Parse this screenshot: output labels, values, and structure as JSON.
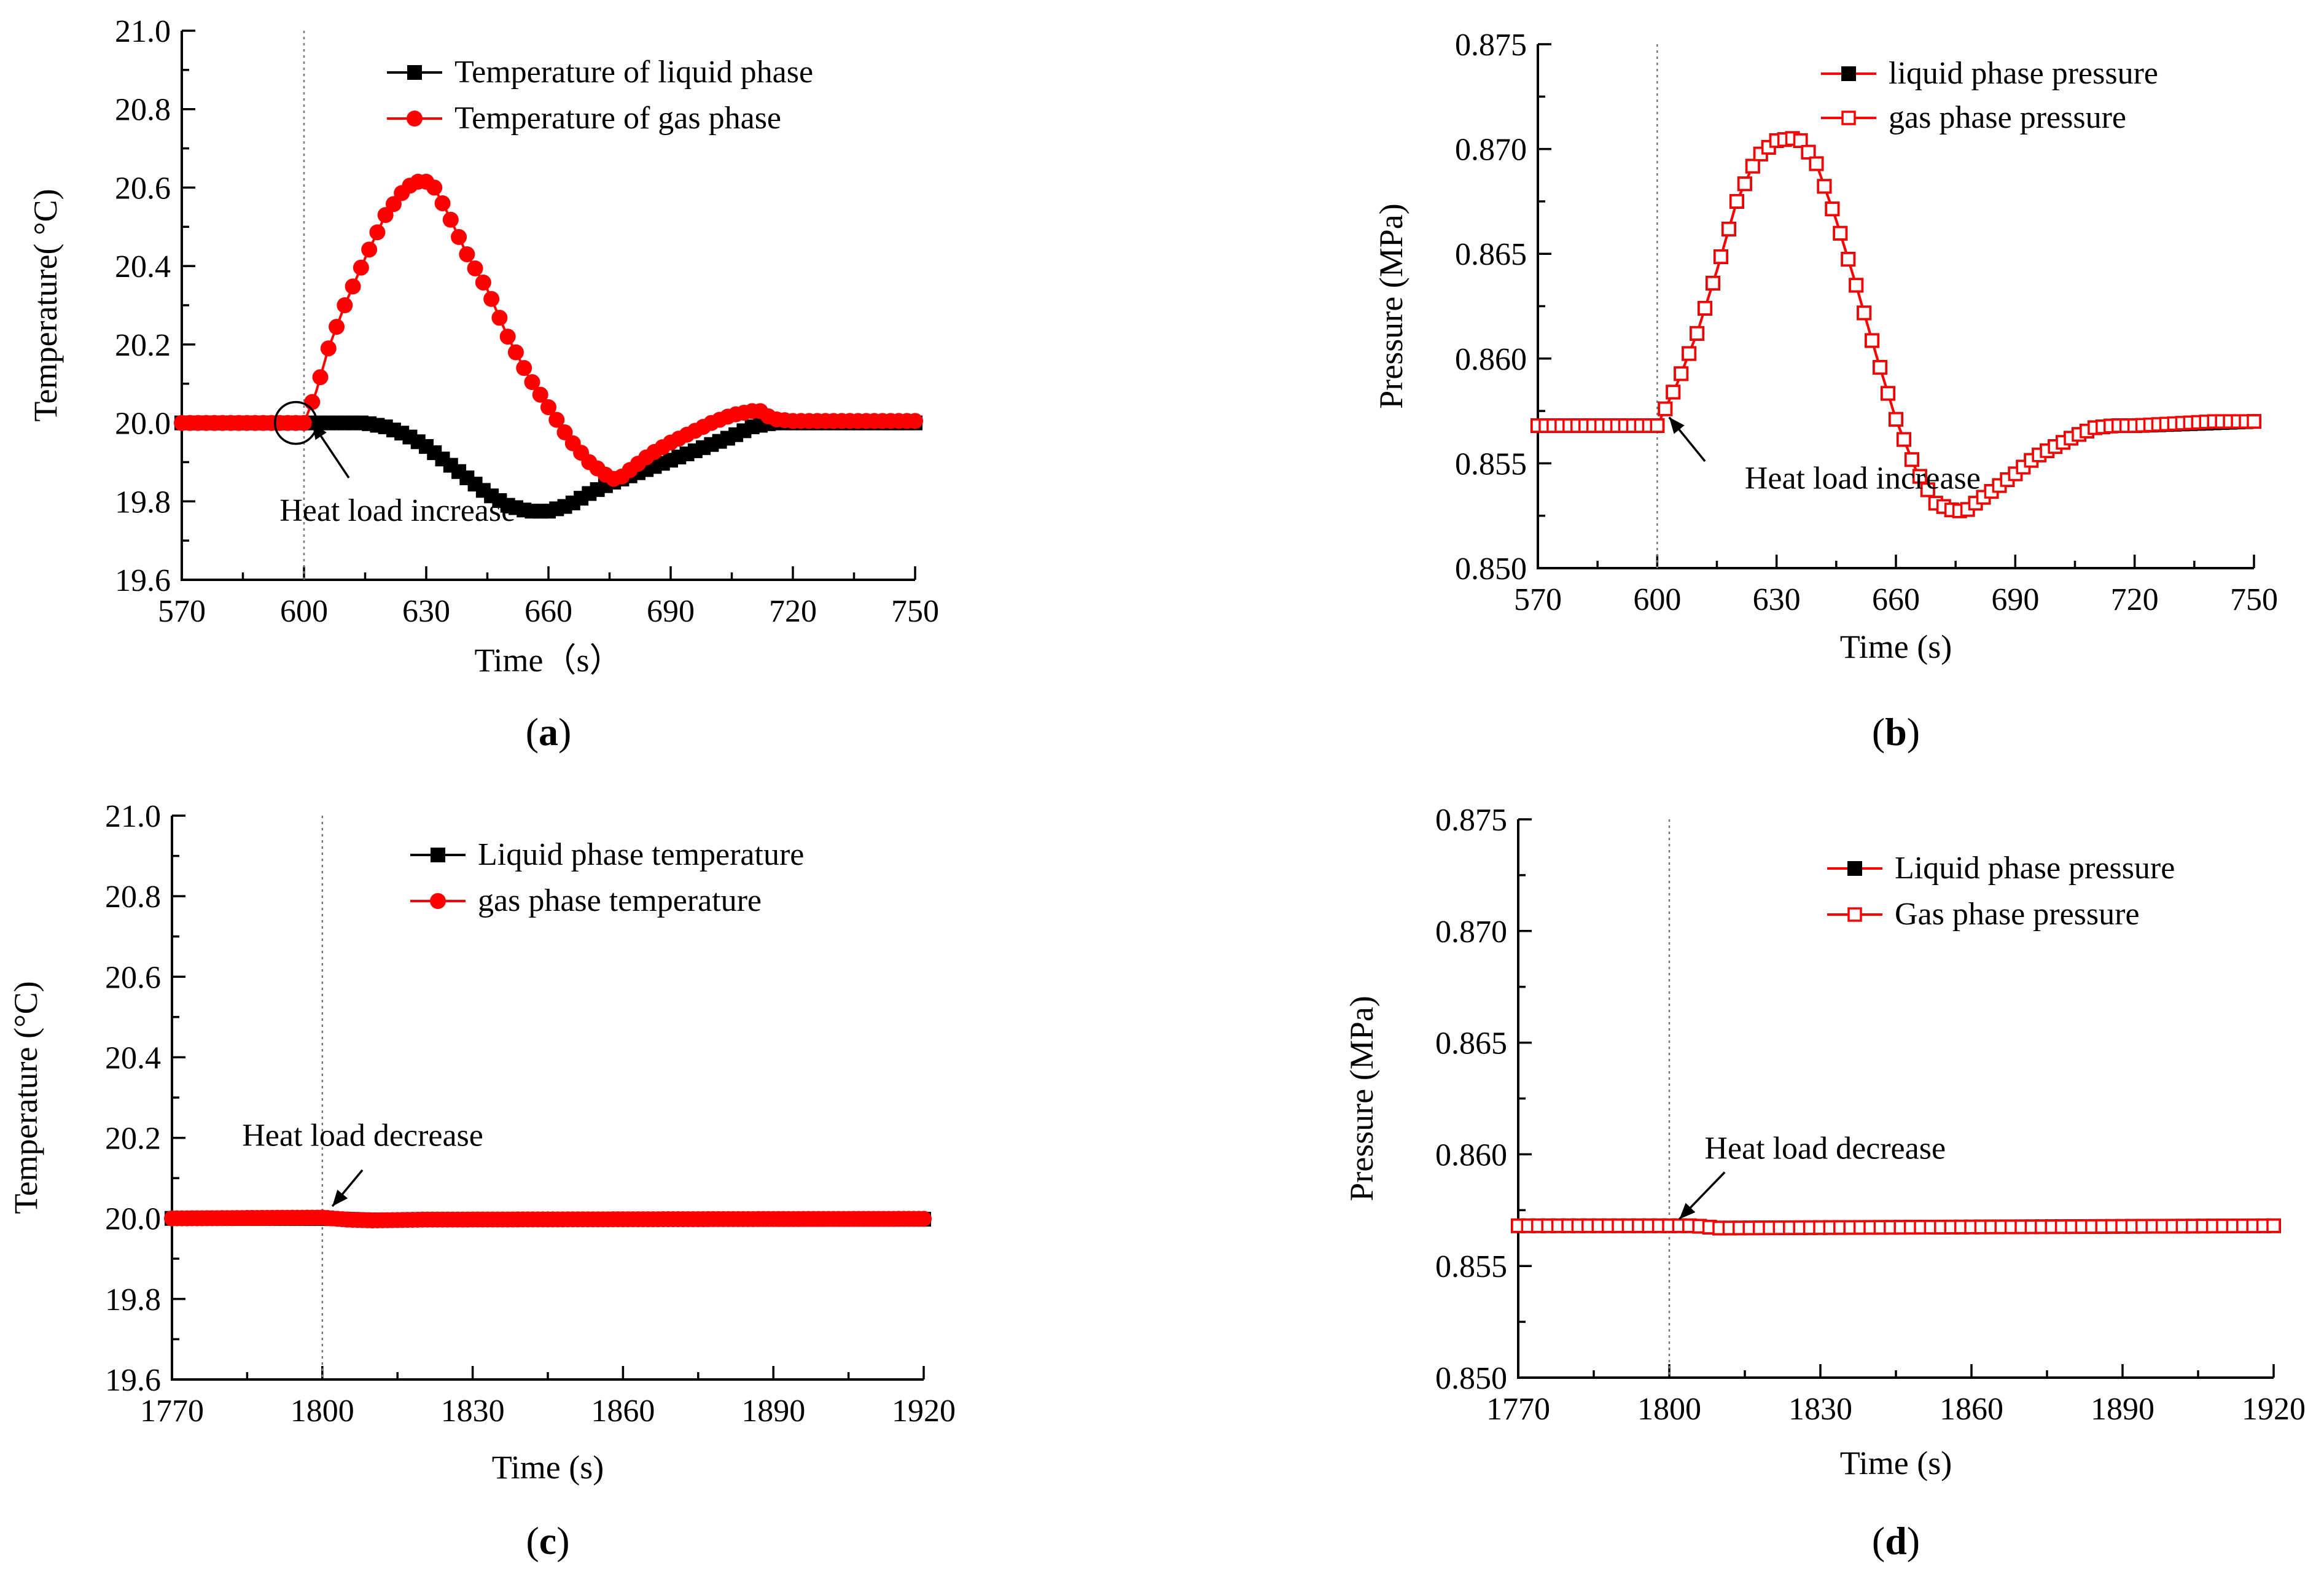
{
  "colors": {
    "liquid": "#000000",
    "gas": "#ff0000",
    "axis": "#000000",
    "marker_line": "#777777"
  },
  "chart_data": [
    {
      "id": "a",
      "type": "line",
      "panel_label": "a",
      "xlabel": "Time（s）",
      "ylabel": "Temperature(  °C)",
      "xlim": [
        570,
        750
      ],
      "ylim": [
        19.6,
        21.0
      ],
      "xticks": [
        570,
        600,
        630,
        660,
        690,
        720,
        750
      ],
      "yticks": [
        19.6,
        19.8,
        20.0,
        20.2,
        20.4,
        20.6,
        20.8,
        21.0
      ],
      "tick_decimals": 1,
      "vline_x": 600,
      "annotation": {
        "text": "Heat load increase",
        "arrow_to": [
          602,
          20.0
        ],
        "arrow_from": [
          611,
          19.86
        ],
        "text_at": [
          594,
          19.75
        ],
        "circle": [
          598,
          20.0
        ]
      },
      "legend": [
        "Temperature of liquid phase",
        "Temperature of gas phase"
      ],
      "series": [
        {
          "name": "Temperature of liquid phase",
          "color": "#000000",
          "marker": "square-filled",
          "step": 2,
          "x": [
            570,
            600,
            605,
            610,
            615,
            620,
            625,
            630,
            635,
            640,
            645,
            650,
            655,
            660,
            665,
            670,
            675,
            680,
            685,
            690,
            695,
            700,
            705,
            710,
            715,
            720,
            750
          ],
          "y": [
            20.0,
            20.0,
            20.0,
            20.0,
            20.0,
            19.99,
            19.97,
            19.94,
            19.9,
            19.86,
            19.82,
            19.79,
            19.775,
            19.775,
            19.79,
            19.82,
            19.845,
            19.865,
            19.885,
            19.905,
            19.925,
            19.945,
            19.965,
            19.99,
            20.0,
            20.0,
            20.0
          ]
        },
        {
          "name": "Temperature of gas phase",
          "color": "#ff0000",
          "marker": "circle-filled",
          "step": 2,
          "x": [
            570,
            600,
            603,
            606,
            610,
            615,
            620,
            625,
            628,
            630,
            632,
            635,
            640,
            645,
            650,
            655,
            660,
            665,
            670,
            675,
            677,
            680,
            685,
            690,
            695,
            700,
            705,
            710,
            712,
            715,
            720,
            750
          ],
          "y": [
            20.0,
            20.0,
            20.08,
            20.19,
            20.3,
            20.42,
            20.53,
            20.6,
            20.615,
            20.615,
            20.6,
            20.54,
            20.43,
            20.34,
            20.22,
            20.12,
            20.04,
            19.96,
            19.9,
            19.86,
            19.855,
            19.88,
            19.92,
            19.95,
            19.975,
            20.0,
            20.02,
            20.03,
            20.03,
            20.01,
            20.005,
            20.005
          ]
        }
      ]
    },
    {
      "id": "b",
      "type": "line",
      "panel_label": "b",
      "xlabel": "Time (s)",
      "ylabel": "Pressure (MPa)",
      "xlim": [
        570,
        750
      ],
      "ylim": [
        0.85,
        0.875
      ],
      "xticks": [
        570,
        600,
        630,
        660,
        690,
        720,
        750
      ],
      "yticks": [
        0.85,
        0.855,
        0.86,
        0.865,
        0.87,
        0.875
      ],
      "tick_decimals": 3,
      "vline_x": 600,
      "annotation": {
        "text": "Heat load increase",
        "arrow_to": [
          603,
          0.8572
        ],
        "arrow_from": [
          612,
          0.8551
        ],
        "text_at": [
          622,
          0.8538
        ]
      },
      "legend": [
        "liquid phase pressure",
        "gas phase pressure"
      ],
      "series": [
        {
          "name": "liquid phase pressure",
          "color": "#000000",
          "marker": "square-filled",
          "step": 2,
          "line_color": "#ff0000",
          "x": [
            570,
            600,
            605,
            610,
            615,
            620,
            625,
            630,
            634,
            636,
            640,
            645,
            650,
            655,
            660,
            665,
            670,
            675,
            678,
            680,
            685,
            690,
            695,
            700,
            705,
            710,
            715,
            720,
            750
          ],
          "y": [
            0.8568,
            0.8568,
            0.8588,
            0.8612,
            0.8642,
            0.8675,
            0.8696,
            0.8704,
            0.8705,
            0.8704,
            0.8693,
            0.8666,
            0.8635,
            0.8602,
            0.8571,
            0.8547,
            0.8531,
            0.8527,
            0.8528,
            0.8531,
            0.8538,
            0.8545,
            0.8553,
            0.8558,
            0.8563,
            0.8567,
            0.8568,
            0.8568,
            0.857
          ]
        },
        {
          "name": "gas phase pressure",
          "color": "#ff0000",
          "marker": "square-open",
          "step": 2,
          "x": [
            570,
            600,
            605,
            610,
            615,
            620,
            625,
            630,
            634,
            636,
            640,
            645,
            650,
            655,
            660,
            665,
            670,
            675,
            678,
            680,
            685,
            690,
            695,
            700,
            705,
            710,
            715,
            720,
            730,
            740,
            750
          ],
          "y": [
            0.8568,
            0.8568,
            0.8588,
            0.8612,
            0.8642,
            0.8675,
            0.8696,
            0.8704,
            0.8705,
            0.8704,
            0.8693,
            0.8666,
            0.8635,
            0.8602,
            0.8571,
            0.8547,
            0.8531,
            0.8527,
            0.8528,
            0.8531,
            0.8538,
            0.8545,
            0.8553,
            0.8558,
            0.8563,
            0.8567,
            0.8568,
            0.8568,
            0.8569,
            0.857,
            0.857
          ]
        }
      ]
    },
    {
      "id": "c",
      "type": "line",
      "panel_label": "c",
      "xlabel": "Time (s)",
      "ylabel": "Temperature (°C)",
      "xlim": [
        1770,
        1920
      ],
      "ylim": [
        19.6,
        21.0
      ],
      "xticks": [
        1770,
        1800,
        1830,
        1860,
        1890,
        1920
      ],
      "yticks": [
        19.6,
        19.8,
        20.0,
        20.2,
        20.4,
        20.6,
        20.8,
        21.0
      ],
      "tick_decimals": 1,
      "vline_x": 1800,
      "annotation": {
        "text": "Heat load decrease",
        "arrow_to": [
          1802,
          20.03
        ],
        "arrow_from": [
          1808,
          20.12
        ],
        "text_at": [
          1784,
          20.18
        ]
      },
      "legend": [
        "Liquid phase temperature",
        "gas phase temperature"
      ],
      "series": [
        {
          "name": "Liquid phase temperature",
          "color": "#000000",
          "marker": "square-filled",
          "step": 1,
          "x": [
            1770,
            1800,
            1805,
            1810,
            1820,
            1920
          ],
          "y": [
            20.0,
            20.0,
            19.998,
            19.996,
            19.997,
            19.998
          ]
        },
        {
          "name": "gas phase temperature",
          "color": "#ff0000",
          "marker": "circle-filled",
          "step": 1,
          "x": [
            1770,
            1800,
            1805,
            1810,
            1820,
            1920
          ],
          "y": [
            20.0,
            20.002,
            19.997,
            19.995,
            19.997,
            19.999
          ]
        }
      ]
    },
    {
      "id": "d",
      "type": "line",
      "panel_label": "d",
      "xlabel": "Time (s)",
      "ylabel": "Pressure (MPa)",
      "xlim": [
        1770,
        1920
      ],
      "ylim": [
        0.85,
        0.875
      ],
      "xticks": [
        1770,
        1800,
        1830,
        1860,
        1890,
        1920
      ],
      "yticks": [
        0.85,
        0.855,
        0.86,
        0.865,
        0.87,
        0.875
      ],
      "tick_decimals": 3,
      "vline_x": 1800,
      "annotation": {
        "text": "Heat load decrease",
        "arrow_to": [
          1802,
          0.8571
        ],
        "arrow_from": [
          1811,
          0.8592
        ],
        "text_at": [
          1807,
          0.8598
        ]
      },
      "legend": [
        "Liquid phase pressure",
        "Gas phase pressure"
      ],
      "series": [
        {
          "name": "Liquid phase pressure",
          "color": "#000000",
          "marker": "square-filled",
          "step": 2,
          "line_color": "#ff0000",
          "x": [
            1770,
            1800,
            1805,
            1810,
            1920
          ],
          "y": [
            0.8568,
            0.8568,
            0.8568,
            0.8567,
            0.8568
          ]
        },
        {
          "name": "Gas phase pressure",
          "color": "#ff0000",
          "marker": "square-open",
          "step": 2,
          "x": [
            1770,
            1800,
            1805,
            1810,
            1920
          ],
          "y": [
            0.8568,
            0.8568,
            0.8568,
            0.8567,
            0.8568
          ]
        }
      ]
    }
  ]
}
